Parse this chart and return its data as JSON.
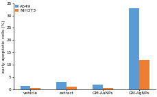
{
  "categories": [
    "vehicle",
    "extract",
    "GM-AuNPs",
    "GM-AgNPs"
  ],
  "A549": [
    1.2,
    3.0,
    2.0,
    33.0
  ],
  "NIH3T3": [
    0.5,
    1.0,
    0.4,
    12.0
  ],
  "color_A549": "#5B9BD5",
  "color_NIH3T3": "#ED7D31",
  "ylabel": "early apoptotic cells (%)",
  "ylim": [
    0,
    35
  ],
  "yticks": [
    0,
    5,
    10,
    15,
    20,
    25,
    30,
    35
  ],
  "legend_labels": [
    "A549",
    "NIH3T3"
  ],
  "bar_width": 0.28,
  "background_color": "#ffffff",
  "font_size": 4.5,
  "tick_font_size": 4.2,
  "legend_font_size": 4.5
}
